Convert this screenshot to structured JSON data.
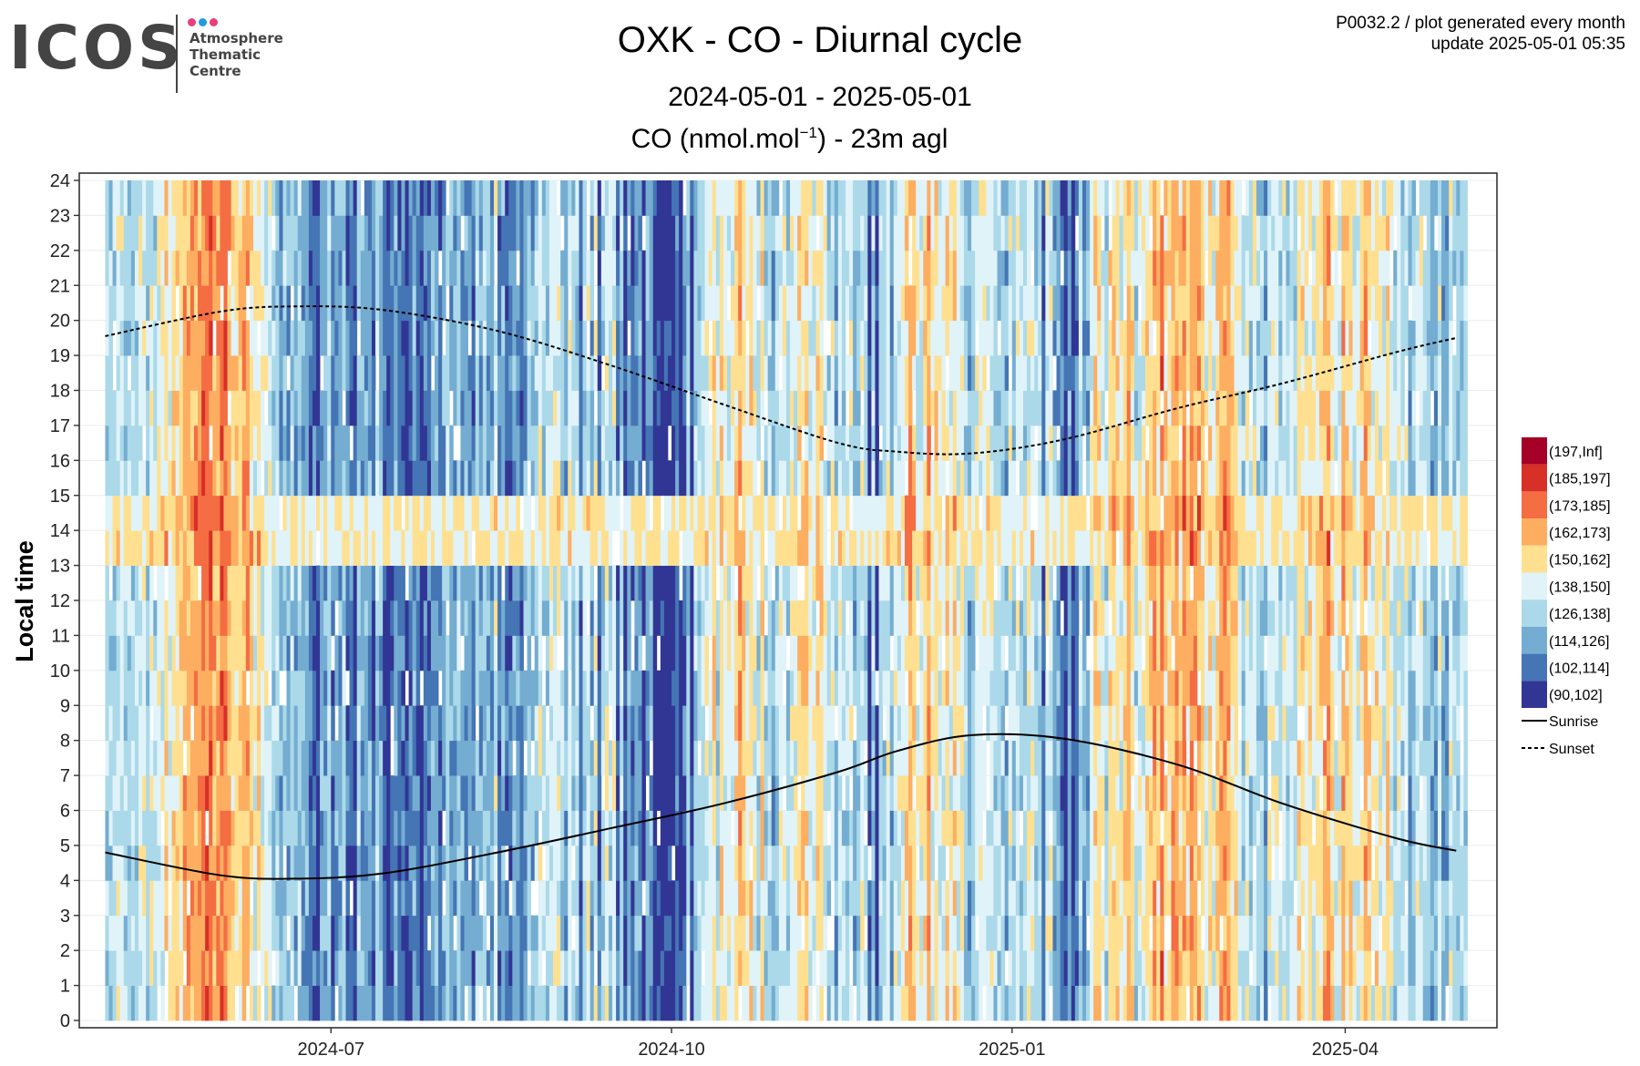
{
  "logo": {
    "text": "ICOS",
    "sub": [
      "Atmosphere",
      "Thematic",
      "Centre"
    ],
    "dot_colors": [
      "#e83e7d",
      "#1f9be0",
      "#e83e7d"
    ]
  },
  "header": {
    "title": "OXK - CO - Diurnal cycle",
    "subtitle": "2024-05-01 - 2025-05-01",
    "variable_prefix": "CO (nmol.mol",
    "variable_exponent": "−1",
    "variable_suffix": ") - 23m agl",
    "meta_line1": "P0032.2 / plot generated every month",
    "meta_line2": "update  2025-05-01 05:35"
  },
  "chart_data": {
    "type": "heatmap",
    "x_range": [
      "2024-05-01",
      "2025-05-01"
    ],
    "x_ticks": [
      "2024-07",
      "2024-10",
      "2025-01",
      "2025-04"
    ],
    "y_ticks": [
      0,
      1,
      2,
      3,
      4,
      5,
      6,
      7,
      8,
      9,
      10,
      11,
      12,
      13,
      14,
      15,
      16,
      17,
      18,
      19,
      20,
      21,
      22,
      23,
      24
    ],
    "ylabel": "Local time",
    "ylim": [
      0,
      24
    ],
    "grid": true,
    "legend_position": "right",
    "classes": [
      {
        "label": "(197,Inf]",
        "color": "#a50026"
      },
      {
        "label": "(185,197]",
        "color": "#d73027"
      },
      {
        "label": "(173,185]",
        "color": "#f46d43"
      },
      {
        "label": "(162,173]",
        "color": "#fdae61"
      },
      {
        "label": "(150,162]",
        "color": "#fee090"
      },
      {
        "label": "(138,150]",
        "color": "#e0f3f8"
      },
      {
        "label": "(126,138]",
        "color": "#abd9e9"
      },
      {
        "label": "(114,126]",
        "color": "#74add1"
      },
      {
        "label": "(102,114]",
        "color": "#4575b4"
      },
      {
        "label": "(90,102]",
        "color": "#313695"
      }
    ],
    "lines": [
      {
        "name": "Sunrise",
        "style": "solid",
        "x": [
          "2024-05-01",
          "2024-06-01",
          "2024-06-21",
          "2024-07-15",
          "2024-08-15",
          "2024-09-15",
          "2024-10-15",
          "2024-11-15",
          "2024-12-01",
          "2024-12-21",
          "2025-01-15",
          "2025-02-15",
          "2025-03-15",
          "2025-04-15",
          "2025-05-01"
        ],
        "y": [
          4.8,
          4.15,
          4.05,
          4.2,
          4.8,
          5.5,
          6.2,
          7.1,
          7.7,
          8.15,
          8.05,
          7.3,
          6.2,
          5.2,
          4.85
        ]
      },
      {
        "name": "Sunset",
        "style": "dashed",
        "x": [
          "2024-05-01",
          "2024-06-01",
          "2024-06-21",
          "2024-07-15",
          "2024-08-15",
          "2024-09-15",
          "2024-10-15",
          "2024-11-15",
          "2024-12-01",
          "2024-12-21",
          "2025-01-15",
          "2025-02-15",
          "2025-03-15",
          "2025-04-15",
          "2025-05-01"
        ],
        "y": [
          19.55,
          20.25,
          20.4,
          20.3,
          19.7,
          18.7,
          17.6,
          16.5,
          16.25,
          16.2,
          16.6,
          17.5,
          18.2,
          19.1,
          19.5
        ]
      }
    ],
    "heat_levels": [
      3,
      3,
      3,
      4,
      4,
      3,
      3,
      3,
      3,
      4,
      4,
      3,
      4,
      3,
      4,
      4,
      5,
      4,
      5,
      5,
      5,
      6,
      6,
      6,
      6,
      6,
      7,
      7,
      7,
      6,
      6,
      7,
      7,
      6,
      5,
      5,
      5,
      6,
      6,
      5,
      4,
      5,
      4,
      4,
      4,
      3,
      3,
      2,
      3,
      2,
      3,
      2,
      3,
      2,
      2,
      1,
      1,
      0,
      2,
      2,
      3,
      1,
      2,
      2,
      3,
      1,
      1,
      0,
      3,
      2,
      2,
      2,
      1,
      3,
      2,
      1,
      0,
      1,
      2,
      1,
      1,
      0,
      1,
      2,
      1,
      0,
      1,
      1,
      2,
      2,
      1,
      2,
      3,
      2,
      2,
      3,
      2,
      2,
      2,
      1,
      3,
      2,
      3,
      2,
      2,
      4,
      1,
      2,
      1,
      1,
      2,
      2,
      1,
      2,
      3,
      2,
      3,
      4,
      3,
      3,
      4,
      4,
      4,
      3,
      2,
      4,
      3,
      3,
      1,
      3,
      4,
      2,
      4,
      1,
      3,
      4,
      3,
      4,
      1,
      3,
      0,
      2,
      1,
      2,
      2,
      0,
      2,
      2,
      0,
      0,
      0,
      0,
      0,
      0,
      1,
      0,
      1,
      3,
      0,
      3,
      3,
      3,
      4,
      4,
      5,
      3,
      5,
      4,
      4,
      4,
      5,
      6,
      5,
      4,
      5,
      4,
      3,
      5,
      3,
      3,
      2,
      3,
      4,
      4,
      3,
      4,
      4,
      5,
      5,
      5,
      4,
      4,
      5,
      5,
      4,
      3,
      4,
      2,
      4,
      3,
      3,
      4,
      2,
      3,
      4,
      3,
      0,
      3,
      0,
      3,
      3,
      4,
      2,
      4,
      4,
      4,
      5,
      6,
      5,
      4,
      4,
      5,
      6,
      4,
      5,
      4,
      4,
      5,
      4,
      5,
      4,
      4,
      3,
      2,
      3,
      4,
      4,
      4,
      4,
      4,
      3,
      3,
      3,
      2,
      4,
      3,
      4,
      3,
      3,
      4,
      4,
      3,
      3,
      1,
      4,
      4,
      2,
      2,
      1,
      0,
      2,
      0,
      1,
      3,
      2,
      2,
      4,
      5,
      5,
      4,
      3,
      5,
      5,
      5,
      4,
      5,
      6,
      5,
      3,
      4,
      4,
      5,
      5,
      6,
      5,
      7,
      5,
      5,
      6,
      6,
      5,
      6,
      5,
      6,
      6,
      6,
      5,
      4,
      5,
      4,
      5,
      6,
      6,
      6,
      5,
      5,
      4,
      3,
      4,
      3,
      4,
      3,
      3,
      2,
      4,
      4,
      4,
      3,
      4,
      3,
      4,
      3,
      5,
      5,
      4,
      5,
      4,
      5,
      5,
      6,
      6,
      5,
      4,
      4,
      6,
      5,
      5,
      4,
      4,
      5,
      6,
      5,
      4,
      5,
      4,
      4,
      5,
      4,
      3,
      4,
      3,
      4,
      2,
      3,
      4,
      4,
      3,
      3,
      2,
      2,
      4,
      2,
      2,
      4,
      3,
      3,
      3,
      3
    ]
  }
}
